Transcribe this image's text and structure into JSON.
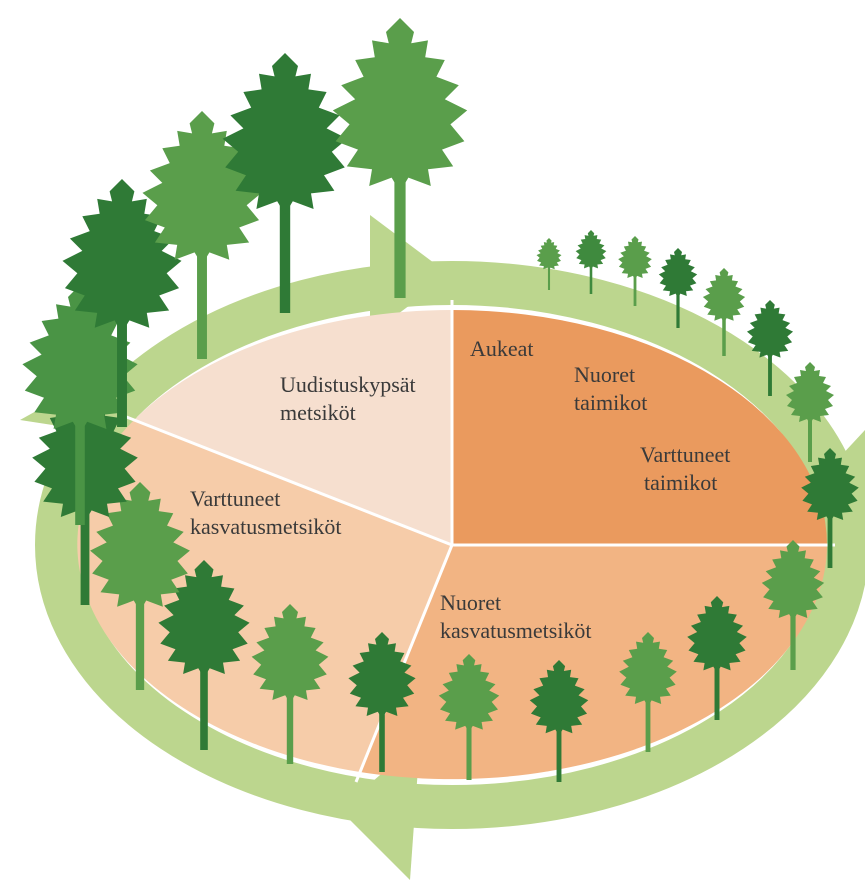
{
  "sectors": [
    {
      "lines": [
        "Aukeat"
      ]
    },
    {
      "lines": [
        "Nuoret",
        "taimikot"
      ]
    },
    {
      "lines": [
        "Varttuneet",
        "taimikot"
      ]
    },
    {
      "lines": [
        "Nuoret",
        "kasvatusmetsiköt"
      ]
    },
    {
      "lines": [
        "Varttuneet",
        "kasvatusmetsiköt"
      ]
    },
    {
      "lines": [
        "Uudistuskypsät",
        "metsiköt"
      ]
    }
  ]
}
